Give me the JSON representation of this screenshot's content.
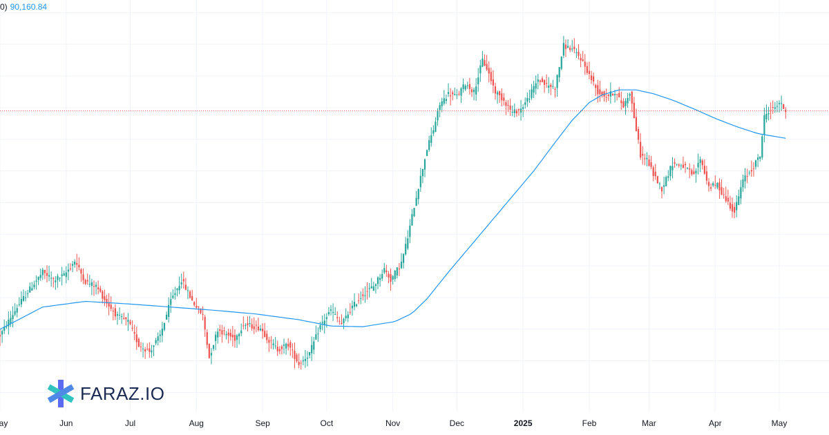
{
  "legend": {
    "prefix": "0)",
    "ma_value": "90,160.84"
  },
  "brand": {
    "name": "FARAZ.IO"
  },
  "colors": {
    "up": "#26a69a",
    "down": "#ef5350",
    "ma": "#2196f3",
    "grid": "#f0f3fa",
    "last_price_line": "#ef5350"
  },
  "chart_data": {
    "type": "candlestick",
    "x_labels": [
      {
        "label": "May",
        "day": 0,
        "bold": false
      },
      {
        "label": "Jun",
        "day": 31,
        "bold": false
      },
      {
        "label": "Jul",
        "day": 61,
        "bold": false
      },
      {
        "label": "Aug",
        "day": 92,
        "bold": false
      },
      {
        "label": "Sep",
        "day": 123,
        "bold": false
      },
      {
        "label": "Oct",
        "day": 153,
        "bold": false
      },
      {
        "label": "Nov",
        "day": 184,
        "bold": false
      },
      {
        "label": "Dec",
        "day": 214,
        "bold": false
      },
      {
        "label": "2025",
        "day": 245,
        "bold": true
      },
      {
        "label": "Feb",
        "day": 276,
        "bold": false
      },
      {
        "label": "Mar",
        "day": 304,
        "bold": false
      },
      {
        "label": "Apr",
        "day": 335,
        "bold": false
      },
      {
        "label": "May",
        "day": 365,
        "bold": false
      }
    ],
    "y_range": [
      47000,
      112000
    ],
    "moving_average": {
      "value": 90160.84
    },
    "last_close": 94500,
    "close_path": [
      [
        0,
        59000
      ],
      [
        8,
        63500
      ],
      [
        15,
        66800
      ],
      [
        20,
        69000
      ],
      [
        25,
        67800
      ],
      [
        30,
        68500
      ],
      [
        35,
        70800
      ],
      [
        40,
        67500
      ],
      [
        45,
        66800
      ],
      [
        50,
        64200
      ],
      [
        55,
        62000
      ],
      [
        60,
        61200
      ],
      [
        65,
        57500
      ],
      [
        70,
        56500
      ],
      [
        75,
        59000
      ],
      [
        80,
        64500
      ],
      [
        85,
        67800
      ],
      [
        90,
        64500
      ],
      [
        95,
        62200
      ],
      [
        98,
        55500
      ],
      [
        102,
        60000
      ],
      [
        106,
        59200
      ],
      [
        110,
        58500
      ],
      [
        114,
        60800
      ],
      [
        118,
        60500
      ],
      [
        122,
        60200
      ],
      [
        126,
        58200
      ],
      [
        130,
        56800
      ],
      [
        135,
        57600
      ],
      [
        140,
        54500
      ],
      [
        145,
        56200
      ],
      [
        150,
        60500
      ],
      [
        155,
        63000
      ],
      [
        160,
        60800
      ],
      [
        165,
        63500
      ],
      [
        170,
        65500
      ],
      [
        175,
        66800
      ],
      [
        180,
        69500
      ],
      [
        183,
        67800
      ],
      [
        188,
        70500
      ],
      [
        191,
        74500
      ],
      [
        194,
        79500
      ],
      [
        200,
        88500
      ],
      [
        203,
        91500
      ],
      [
        206,
        95500
      ],
      [
        210,
        97200
      ],
      [
        214,
        96800
      ],
      [
        218,
        98800
      ],
      [
        222,
        97500
      ],
      [
        226,
        102500
      ],
      [
        228,
        101200
      ],
      [
        232,
        97500
      ],
      [
        236,
        96200
      ],
      [
        240,
        94200
      ],
      [
        244,
        94800
      ],
      [
        248,
        96800
      ],
      [
        252,
        99500
      ],
      [
        256,
        98500
      ],
      [
        260,
        98200
      ],
      [
        264,
        104800
      ],
      [
        268,
        104200
      ],
      [
        272,
        102800
      ],
      [
        276,
        100200
      ],
      [
        280,
        97500
      ],
      [
        284,
        96800
      ],
      [
        288,
        97500
      ],
      [
        292,
        95200
      ],
      [
        295,
        97500
      ],
      [
        300,
        87500
      ],
      [
        303,
        86800
      ],
      [
        306,
        84500
      ],
      [
        310,
        82200
      ],
      [
        315,
        86200
      ],
      [
        320,
        85800
      ],
      [
        325,
        84200
      ],
      [
        328,
        87000
      ],
      [
        332,
        82500
      ],
      [
        336,
        82800
      ],
      [
        340,
        80500
      ],
      [
        344,
        78500
      ],
      [
        348,
        83500
      ],
      [
        352,
        85200
      ],
      [
        356,
        87500
      ],
      [
        358,
        93500
      ],
      [
        360,
        94500
      ],
      [
        362,
        94800
      ],
      [
        365,
        95800
      ],
      [
        368,
        94500
      ]
    ],
    "ma_path": [
      [
        0,
        60000
      ],
      [
        20,
        63500
      ],
      [
        40,
        64400
      ],
      [
        60,
        64000
      ],
      [
        80,
        63500
      ],
      [
        100,
        63000
      ],
      [
        120,
        62400
      ],
      [
        140,
        61500
      ],
      [
        155,
        60500
      ],
      [
        170,
        60400
      ],
      [
        185,
        61200
      ],
      [
        193,
        62500
      ],
      [
        200,
        64800
      ],
      [
        210,
        69000
      ],
      [
        220,
        73000
      ],
      [
        230,
        77000
      ],
      [
        240,
        81000
      ],
      [
        250,
        85000
      ],
      [
        260,
        89500
      ],
      [
        268,
        93000
      ],
      [
        276,
        95800
      ],
      [
        282,
        97000
      ],
      [
        290,
        97800
      ],
      [
        298,
        97800
      ],
      [
        306,
        97200
      ],
      [
        315,
        96200
      ],
      [
        325,
        94800
      ],
      [
        335,
        93300
      ],
      [
        345,
        92000
      ],
      [
        355,
        90900
      ],
      [
        368,
        90160
      ]
    ]
  }
}
